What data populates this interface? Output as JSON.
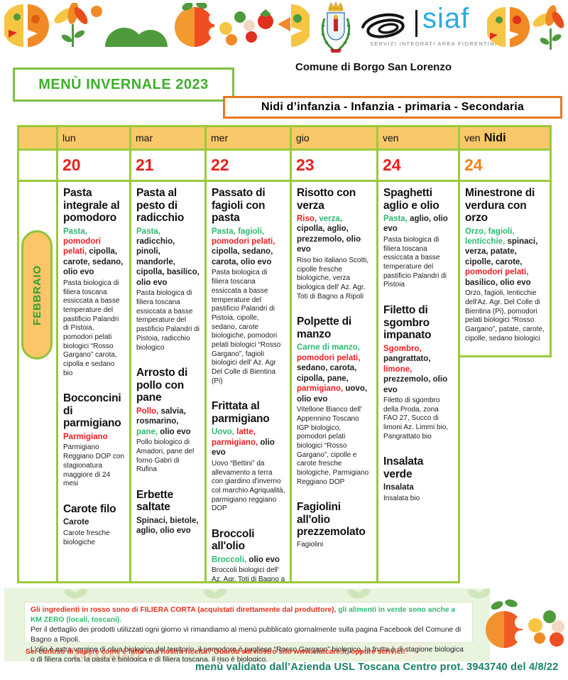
{
  "header": {
    "comune": "Comune di Borgo San Lorenzo",
    "menu_title": "MENÙ  INVERNALE 2023",
    "audience": "Nidi d’infanzia - Infanzia -  primaria  -  Secondaria",
    "siaf": {
      "name": "siaf",
      "subtitle": "SERVIZI INTEGRATI AREA FIORENTINA"
    }
  },
  "colors": {
    "green": "#2eb872",
    "red": "#ed1c24",
    "black": "#1d1d1b",
    "table_border": "#9aca3b",
    "header_fill": "#f9c869",
    "day_number_red": "#e8201a",
    "day_number_orange": "#f0841c"
  },
  "calendar": {
    "month": "FEBBRAIO",
    "days": [
      {
        "name": "lun",
        "number": "20",
        "number_color": "#e8201a",
        "dishes": [
          {
            "title": "Pasta integrale al pomodoro",
            "ingredients": [
              {
                "text": "Pasta,",
                "color": "green"
              },
              {
                "text": " pomodori pelati,",
                "color": "red"
              },
              {
                "text": " cipolla, carote, sedano, olio evo",
                "color": "black"
              }
            ],
            "desc": "Pasta biologica di filiera toscana essiccata a basse temperature del pastificio Palandri di Pistoia, pomodori pelati biologici “Rosso Gargano” carota, cipolla e sedano bio"
          },
          {
            "title": "Bocconcini di parmigiano",
            "ingredients": [
              {
                "text": "Parmigiano",
                "color": "red"
              }
            ],
            "desc": "Parmigiano Reggiano DOP  con stagionatura maggiore di 24 mesi"
          },
          {
            "title": "Carote filo",
            "ingredients": [
              {
                "text": "Carote",
                "color": "black"
              }
            ],
            "desc": "Carote fresche biologiche"
          }
        ]
      },
      {
        "name": "mar",
        "number": "21",
        "number_color": "#e8201a",
        "dishes": [
          {
            "title": "Pasta al pesto di radicchio",
            "ingredients": [
              {
                "text": "Pasta,",
                "color": "green"
              },
              {
                "text": " radicchio, pinoli, mandorle, cipolla, basilico, olio evo",
                "color": "black"
              }
            ],
            "desc": "Pasta biologica di filiera toscana essiccata a basse temperature del pastificio Palandri di Pistoia, radicchio biologico"
          },
          {
            "title": "Arrosto di pollo con pane",
            "ingredients": [
              {
                "text": "Pollo,",
                "color": "red"
              },
              {
                "text": " salvia, rosmarino,",
                "color": "black"
              },
              {
                "text": " pane,",
                "color": "green"
              },
              {
                "text": " olio evo",
                "color": "black"
              }
            ],
            "desc": "Pollo biologico di Amadori, pane del forno Gabri di Rufina"
          },
          {
            "title": "Erbette saltate",
            "ingredients": [
              {
                "text": "Spinaci, bietole, aglio, olio evo",
                "color": "black"
              }
            ],
            "desc": ""
          }
        ]
      },
      {
        "name": "mer",
        "number": "22",
        "number_color": "#e8201a",
        "dishes": [
          {
            "title": "Passato di fagioli con pasta",
            "ingredients": [
              {
                "text": "Pasta, fagioli,",
                "color": "green"
              },
              {
                "text": " pomodori pelati,",
                "color": "red"
              },
              {
                "text": " cipolla, sedano, carota, olio evo",
                "color": "black"
              }
            ],
            "desc": "Pasta biologica di filiera toscana essiccata a basse temperature del pastificio Palandri di Pistoia, cipolle, sedano, carote biologiche, pomodori pelati biologici “Rosso Gargano”, fagioli biologici dell' Az. Agr Del Colle di Bientina (Pi)"
          },
          {
            "title": "Frittata al parmigiano",
            "ingredients": [
              {
                "text": "Uovo,",
                "color": "green"
              },
              {
                "text": " latte, parmigiano,",
                "color": "red"
              },
              {
                "text": " olio evo",
                "color": "black"
              }
            ],
            "desc": "Uovo “Bettini” da allevamento a terra con giardino d'inverno col marchio Agriqualità, parmigiano reggiano DOP"
          },
          {
            "title": "Broccoli all'olio",
            "ingredients": [
              {
                "text": "Broccoli,",
                "color": "green"
              },
              {
                "text": " olio evo",
                "color": "black"
              }
            ],
            "desc": "Broccoli biologici dell' Az. Agr. Toti di Bagno a Ripoli"
          }
        ]
      },
      {
        "name": "gio",
        "number": "23",
        "number_color": "#e8201a",
        "dishes": [
          {
            "title": "Risotto con verza",
            "ingredients": [
              {
                "text": "Riso,",
                "color": "red"
              },
              {
                "text": " verza,",
                "color": "green"
              },
              {
                "text": " cipolla, aglio, prezzemolo, olio evo",
                "color": "black"
              }
            ],
            "desc": "Riso bio italiano Scotti, cipolle fresche biologiche, verza biologica dell' Az. Agr. Toti di Bagno a Ripoli"
          },
          {
            "title": "Polpette di manzo",
            "ingredients": [
              {
                "text": "Carne di manzo,",
                "color": "green"
              },
              {
                "text": " pomodori pelati,",
                "color": "red"
              },
              {
                "text": " sedano, carota, cipolla, pane,",
                "color": "black"
              },
              {
                "text": " parmigiano,",
                "color": "red"
              },
              {
                "text": " uovo, olio evo",
                "color": "black"
              }
            ],
            "desc": "Vitellone Bianco dell' Appennino Toscano IGP biologico, pomodori pelati biologici “Rosso Gargano”, cipolle e carote fresche biologiche, Parmigiano Reggiano DOP"
          },
          {
            "title": "Fagiolini all'olio prezzemolato",
            "ingredients": [],
            "desc": "Fagiolini"
          }
        ]
      },
      {
        "name": "ven",
        "number": "24",
        "number_color": "#e8201a",
        "dishes": [
          {
            "title": "Spaghetti aglio e olio",
            "ingredients": [
              {
                "text": "Pasta,",
                "color": "green"
              },
              {
                "text": " aglio, olio evo",
                "color": "black"
              }
            ],
            "desc": "Pasta biologica di filiera toscana essiccata a basse temperature del pastificio Palandri di Pistoia"
          },
          {
            "title": "Filetto di sgombro impanato",
            "ingredients": [
              {
                "text": "Sgombro,",
                "color": "red"
              },
              {
                "text": " pangrattato,",
                "color": "black"
              },
              {
                "text": " limone,",
                "color": "red"
              },
              {
                "text": " prezzemolo, olio evo",
                "color": "black"
              }
            ],
            "desc": "Filetto di sgombro della Proda, zona FAO 27, Succo di limoni  Az. Limmi bio, Pangrattato bio"
          },
          {
            "title": "Insalata verde",
            "ingredients": [
              {
                "text": "Insalata",
                "color": "black"
              }
            ],
            "desc": "Insalata bio"
          }
        ]
      },
      {
        "name": "ven",
        "extra": "Nidi",
        "number": "24",
        "number_color": "#f0841c",
        "dishes": [
          {
            "title": "Minestrone di verdura con orzo",
            "ingredients": [
              {
                "text": "Orzo, fagioli, lenticchie,",
                "color": "green"
              },
              {
                "text": " spinaci, verza, patate, cipolle, carote,",
                "color": "black"
              },
              {
                "text": " pomodori pelati,",
                "color": "red"
              },
              {
                "text": " basilico, olio evo",
                "color": "black"
              }
            ],
            "desc": "Orzo, fagioli, lenticchie dell'Az. Agr. Del Colle di Bientina (Pi),  pomodori pelati biologici “Rosso Gargano”, patate, carote, cipolle, sedano biologici"
          }
        ]
      }
    ]
  },
  "footer": {
    "note_red": "Gli ingredienti in rosso sono di FILIERA CORTA (acquistati direttamente dal produttore),",
    "note_green": " gli alimenti in verde sono anche a KM ZERO (locali, toscani).",
    "note_line2": "Per il dettaglio  dei prodotti utilizzati ogni giorno vi rimandiamo al menù pubblicato giornalmente sulla pagina Facebook del Comune di Bagno a Ripoli.",
    "note_line3": "L'olio è extra vergine di oliva biologico del territorio, il pomodoro è pugliese “Rosso Gargano” biologico, la frutta è di stagione biologica o di filiera corta, la pasta è biologica e di filiera toscana, il riso è biologico.",
    "curiosity": "Sei curioso di sapere come è fatta una nostra ricetta? Guarda sul nostro sito www.siafcare.it, oppure scrivici!",
    "validation": "menù validato dall’Azienda USL Toscana Centro  prot. 3943740 del 4/8/22"
  }
}
